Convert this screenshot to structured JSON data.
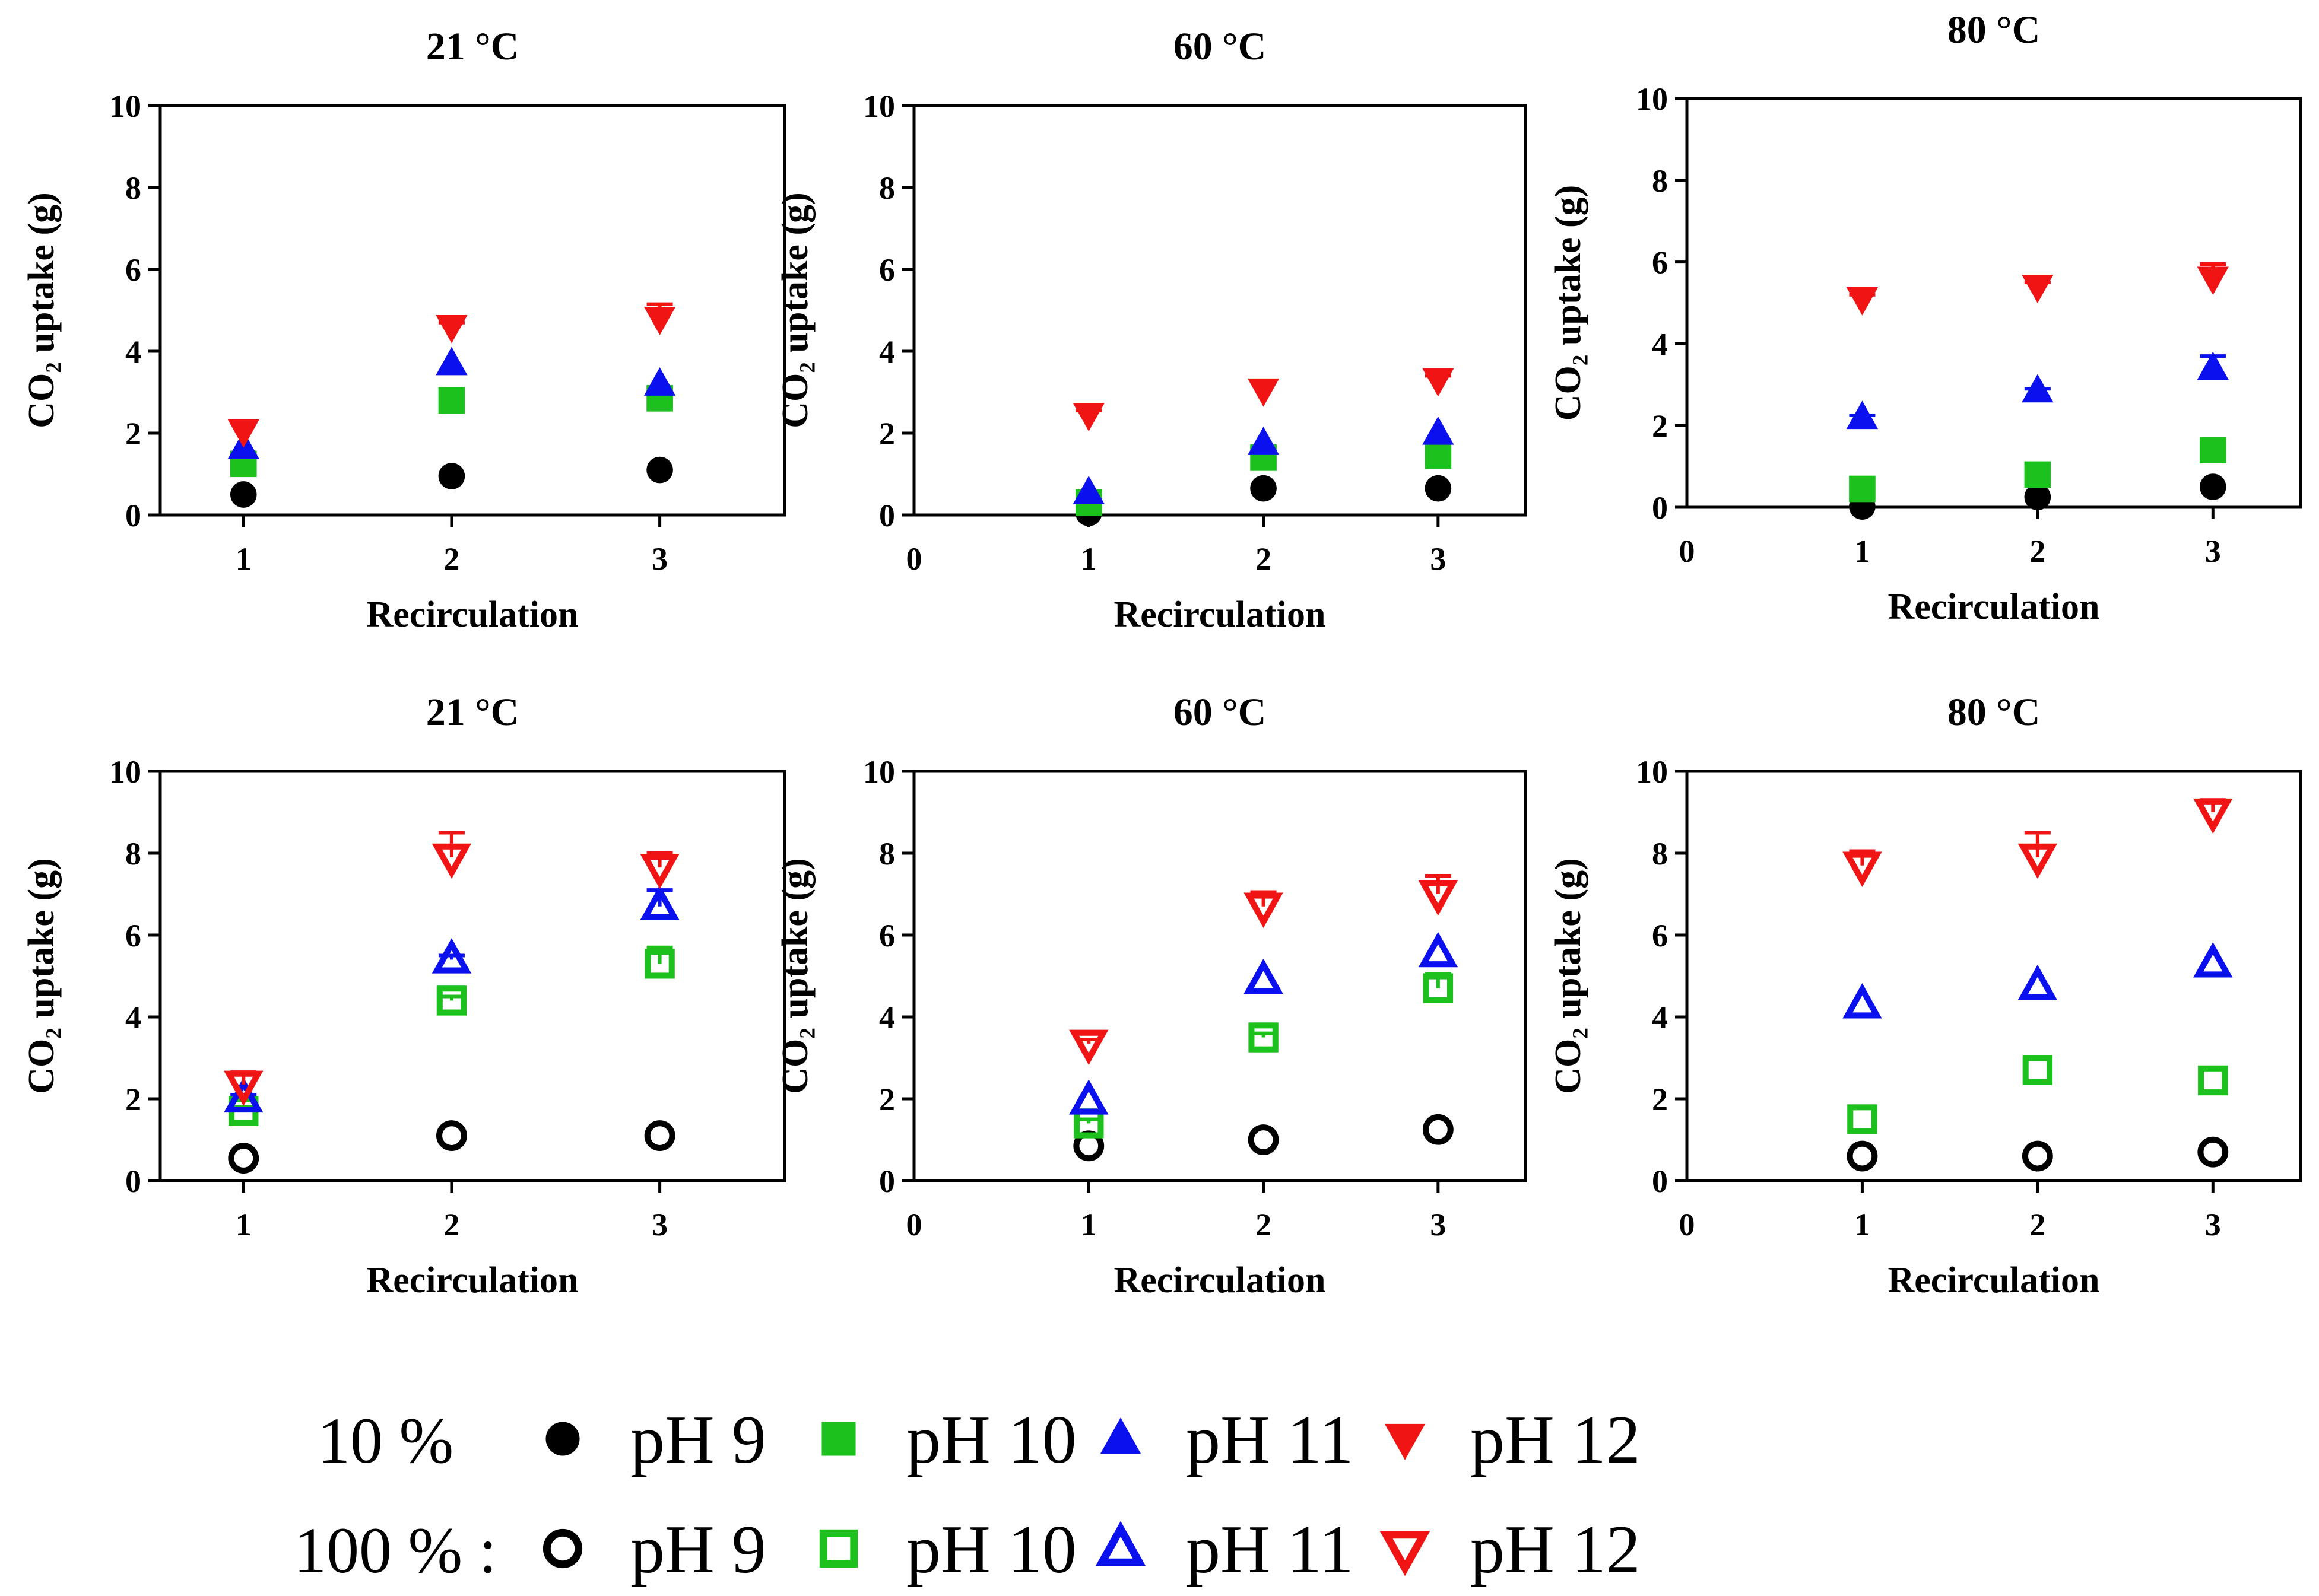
{
  "colors": {
    "ph9": "#000000",
    "ph10": "#1dc11d",
    "ph11": "#0b10ee",
    "ph12": "#f01414",
    "axis": "#000000",
    "background": "#ffffff"
  },
  "chart_data": [
    {
      "type": "scatter",
      "title": "21 °C",
      "xlabel": "Recirculation",
      "ylabel": "CO₂ uptake (g)",
      "x_ticks": [
        "1",
        "2",
        "3"
      ],
      "xlim": [
        0.6,
        3.6
      ],
      "ylim": [
        0,
        10
      ],
      "y_ticks": [
        "0",
        "2",
        "4",
        "6",
        "8",
        "10"
      ],
      "co2": "10 %",
      "filled": true,
      "series": [
        {
          "name": "pH 9",
          "x": [
            1,
            2,
            3
          ],
          "y": [
            0.5,
            0.95,
            1.1
          ]
        },
        {
          "name": "pH 10",
          "x": [
            1,
            2,
            3
          ],
          "y": [
            1.25,
            2.8,
            2.85
          ]
        },
        {
          "name": "pH 11",
          "x": [
            1,
            2,
            3
          ],
          "y": [
            1.65,
            3.7,
            3.2
          ]
        },
        {
          "name": "pH 12",
          "x": [
            1,
            2,
            3
          ],
          "y": [
            2.05,
            4.6,
            4.8
          ],
          "err": [
            0.2,
            0.1,
            0.35
          ]
        }
      ]
    },
    {
      "type": "scatter",
      "title": "60 °C",
      "xlabel": "Recirculation",
      "ylabel": "CO₂ uptake (g)",
      "x_ticks": [
        "0",
        "1",
        "2",
        "3"
      ],
      "xlim": [
        0,
        3.5
      ],
      "ylim": [
        0,
        10
      ],
      "y_ticks": [
        "0",
        "2",
        "4",
        "6",
        "8",
        "10"
      ],
      "co2": "10 %",
      "filled": true,
      "series": [
        {
          "name": "pH 9",
          "x": [
            1,
            2,
            3
          ],
          "y": [
            0.05,
            0.65,
            0.65
          ]
        },
        {
          "name": "pH 10",
          "x": [
            1,
            2,
            3
          ],
          "y": [
            0.3,
            1.4,
            1.45
          ]
        },
        {
          "name": "pH 11",
          "x": [
            1,
            2,
            3
          ],
          "y": [
            0.55,
            1.75,
            2.0
          ]
        },
        {
          "name": "pH 12",
          "x": [
            1,
            2,
            3
          ],
          "y": [
            2.45,
            3.05,
            3.3
          ],
          "err": [
            0.1,
            0.2,
            0.1
          ]
        }
      ]
    },
    {
      "type": "scatter",
      "title": "80 °C",
      "xlabel": "Recirculation",
      "ylabel": "CO₂ uptake (g)",
      "x_ticks": [
        "0",
        "1",
        "2",
        "3"
      ],
      "xlim": [
        0,
        3.5
      ],
      "ylim": [
        0,
        10
      ],
      "y_ticks": [
        "0",
        "2",
        "4",
        "6",
        "8",
        "10"
      ],
      "co2": "10 %",
      "filled": true,
      "series": [
        {
          "name": "pH 9",
          "x": [
            1,
            2,
            3
          ],
          "y": [
            0.02,
            0.25,
            0.5
          ]
        },
        {
          "name": "pH 10",
          "x": [
            1,
            2,
            3
          ],
          "y": [
            0.45,
            0.8,
            1.4
          ]
        },
        {
          "name": "pH 11",
          "x": [
            1,
            2,
            3
          ],
          "y": [
            2.2,
            2.85,
            3.4
          ],
          "err": [
            0.05,
            0.05,
            0.3
          ]
        },
        {
          "name": "pH 12",
          "x": [
            1,
            2,
            3
          ],
          "y": [
            5.1,
            5.4,
            5.6
          ],
          "err": [
            0.1,
            0.1,
            0.35
          ]
        }
      ]
    },
    {
      "type": "scatter",
      "title": "21 °C",
      "xlabel": "Recirculation",
      "ylabel": "CO₂ uptake (g)",
      "x_ticks": [
        "1",
        "2",
        "3"
      ],
      "xlim": [
        0.6,
        3.6
      ],
      "ylim": [
        0,
        10
      ],
      "y_ticks": [
        "0",
        "2",
        "4",
        "6",
        "8",
        "10"
      ],
      "co2": "100 %",
      "filled": false,
      "series": [
        {
          "name": "pH 9",
          "x": [
            1,
            2,
            3
          ],
          "y": [
            0.55,
            1.1,
            1.1
          ]
        },
        {
          "name": "pH 10",
          "x": [
            1,
            2,
            3
          ],
          "y": [
            1.7,
            4.4,
            5.3
          ],
          "err": [
            0.1,
            0.1,
            0.4
          ]
        },
        {
          "name": "pH 11",
          "x": [
            1,
            2,
            3
          ],
          "y": [
            2.0,
            5.4,
            6.7
          ],
          "err": [
            0.1,
            0.1,
            0.4
          ]
        },
        {
          "name": "pH 12",
          "x": [
            1,
            2,
            3
          ],
          "y": [
            2.35,
            7.9,
            7.65
          ],
          "err": [
            0.3,
            0.6,
            0.35
          ]
        }
      ]
    },
    {
      "type": "scatter",
      "title": "60 °C",
      "xlabel": "Recirculation",
      "ylabel": "CO₂ uptake (g)",
      "x_ticks": [
        "0",
        "1",
        "2",
        "3"
      ],
      "xlim": [
        0,
        3.5
      ],
      "ylim": [
        0,
        10
      ],
      "y_ticks": [
        "0",
        "2",
        "4",
        "6",
        "8",
        "10"
      ],
      "co2": "100 %",
      "filled": false,
      "series": [
        {
          "name": "pH 9",
          "x": [
            1,
            2,
            3
          ],
          "y": [
            0.85,
            1.0,
            1.25
          ]
        },
        {
          "name": "pH 10",
          "x": [
            1,
            2,
            3
          ],
          "y": [
            1.4,
            3.5,
            4.7
          ],
          "err": [
            0.1,
            0.1,
            0.35
          ]
        },
        {
          "name": "pH 11",
          "x": [
            1,
            2,
            3
          ],
          "y": [
            1.95,
            4.9,
            5.55
          ]
        },
        {
          "name": "pH 12",
          "x": [
            1,
            2,
            3
          ],
          "y": [
            3.35,
            6.7,
            7.0
          ],
          "err": [
            0.1,
            0.35,
            0.45
          ]
        }
      ]
    },
    {
      "type": "scatter",
      "title": "80 °C",
      "xlabel": "Recirculation",
      "ylabel": "CO₂ uptake (g)",
      "x_ticks": [
        "0",
        "1",
        "2",
        "3"
      ],
      "xlim": [
        0,
        3.5
      ],
      "ylim": [
        0,
        10
      ],
      "y_ticks": [
        "0",
        "2",
        "4",
        "6",
        "8",
        "10"
      ],
      "co2": "100 %",
      "filled": false,
      "series": [
        {
          "name": "pH 9",
          "x": [
            1,
            2,
            3
          ],
          "y": [
            0.6,
            0.6,
            0.7
          ]
        },
        {
          "name": "pH 10",
          "x": [
            1,
            2,
            3
          ],
          "y": [
            1.5,
            2.7,
            2.45
          ]
        },
        {
          "name": "pH 11",
          "x": [
            1,
            2,
            3
          ],
          "y": [
            4.3,
            4.75,
            5.3
          ]
        },
        {
          "name": "pH 12",
          "x": [
            1,
            2,
            3
          ],
          "y": [
            7.7,
            7.9,
            9.0
          ],
          "err": [
            0.35,
            0.6,
            0.3
          ]
        }
      ]
    }
  ],
  "legend": {
    "rows": [
      {
        "label": "10 %",
        "filled": true,
        "items": [
          "pH 9",
          "pH 10",
          "pH 11",
          "pH 12"
        ]
      },
      {
        "label": "100 % :",
        "filled": false,
        "items": [
          "pH 9",
          "pH 10",
          "pH 11",
          "pH 12"
        ]
      }
    ]
  }
}
